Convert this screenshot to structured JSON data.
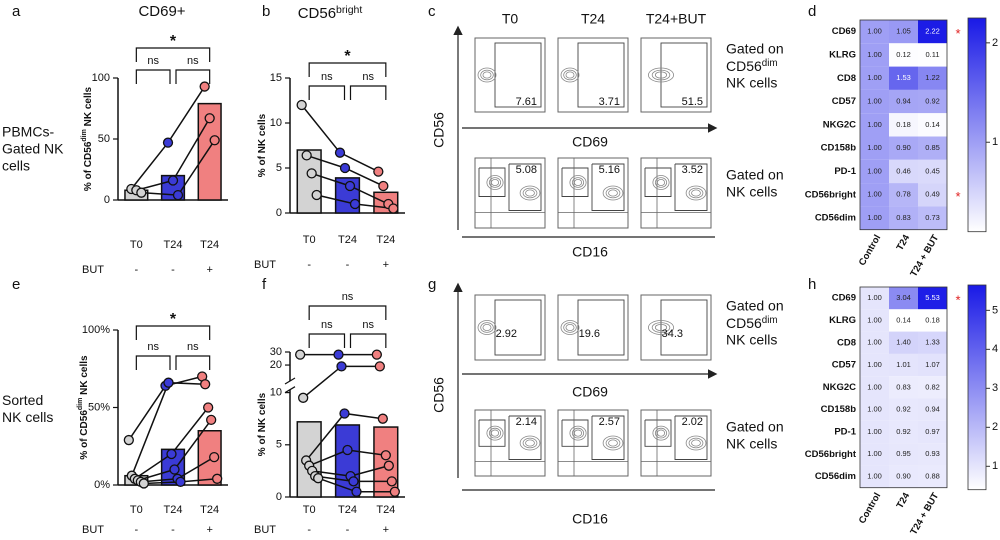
{
  "panel_labels": [
    "a",
    "b",
    "c",
    "d",
    "e",
    "f",
    "g",
    "h"
  ],
  "row_labels": [
    [
      "PBMCs-",
      "Gated NK",
      "cells"
    ],
    [
      "Sorted",
      "NK cells"
    ]
  ],
  "chart_data": [
    {
      "type": "bar",
      "title": [
        "CD69+"
      ],
      "ylabel": [
        "% of CD56",
        "dim",
        " NK cells"
      ],
      "categories": [
        "T0",
        "T24",
        "T24"
      ],
      "treatment": {
        "label": "BUT",
        "values": [
          "-",
          "-",
          "+"
        ]
      },
      "values": [
        8,
        20,
        79
      ],
      "colors": [
        "#d3d3d3",
        "#3b3bd6",
        "#f08080"
      ],
      "donors": [
        {
          "values": [
            9,
            47,
            93
          ]
        },
        {
          "values": [
            8,
            16,
            67
          ]
        },
        {
          "values": [
            6,
            4,
            49
          ]
        }
      ],
      "ylim": [
        0,
        100
      ],
      "yticks": [
        0,
        50,
        100
      ],
      "significance": [
        {
          "label": "*",
          "from": 0,
          "to": 2
        },
        {
          "label": "ns",
          "from": 0,
          "to": 1
        },
        {
          "label": "ns",
          "from": 1,
          "to": 2
        }
      ]
    },
    {
      "type": "bar",
      "title": [
        "CD56",
        "bright"
      ],
      "ylabel": [
        "% of NK cells"
      ],
      "categories": [
        "T0",
        "T24",
        "T24"
      ],
      "treatment": {
        "label": "BUT",
        "values": [
          "-",
          "-",
          "+"
        ]
      },
      "values": [
        7,
        3.9,
        2.3
      ],
      "colors": [
        "#d3d3d3",
        "#3b3bd6",
        "#f08080"
      ],
      "donors": [
        {
          "values": [
            12,
            6.7,
            4.6
          ]
        },
        {
          "values": [
            6.4,
            5,
            3
          ]
        },
        {
          "values": [
            4.4,
            3,
            1
          ]
        },
        {
          "values": [
            2,
            1,
            0.5
          ]
        }
      ],
      "ylim": [
        0,
        15
      ],
      "yticks": [
        0,
        5,
        10,
        15
      ],
      "significance": [
        {
          "label": "*",
          "from": 0,
          "to": 2
        },
        {
          "label": "ns",
          "from": 0,
          "to": 1
        },
        {
          "label": "ns",
          "from": 1,
          "to": 2
        }
      ]
    },
    {
      "type": "heatmap",
      "rows": [
        "CD69",
        "KLRG",
        "CD8",
        "CD57",
        "NKG2C",
        "CD158b",
        "PD-1",
        "CD56bright",
        "CD56dim"
      ],
      "columns": [
        "Control",
        "T24",
        "T24 + BUT"
      ],
      "values": [
        [
          1,
          1.05,
          2.22
        ],
        [
          1,
          0.12,
          0.11
        ],
        [
          1,
          1.53,
          1.22
        ],
        [
          1,
          0.94,
          0.92
        ],
        [
          1,
          0.18,
          0.14
        ],
        [
          1,
          0.9,
          0.85
        ],
        [
          1,
          0.46,
          0.45
        ],
        [
          1,
          0.78,
          0.49
        ],
        [
          1,
          0.83,
          0.73
        ]
      ],
      "value_labels": [
        [
          "1.00",
          "1.05",
          "2.22"
        ],
        [
          "1.00",
          "0.12",
          "0.11"
        ],
        [
          "1.00",
          "1.53",
          "1.22"
        ],
        [
          "1.00",
          "0.94",
          "0.92"
        ],
        [
          "1.00",
          "0.18",
          "0.14"
        ],
        [
          "1.00",
          "0.90",
          "0.85"
        ],
        [
          "1.00",
          "0.46",
          "0.45"
        ],
        [
          "1.00",
          "0.78",
          "0.49"
        ],
        [
          "1.00",
          "0.83",
          "0.73"
        ]
      ],
      "row_marks": [
        "*",
        null,
        null,
        null,
        null,
        null,
        null,
        "*",
        null
      ],
      "clim": [
        0.1,
        2.25
      ],
      "cticks": [
        1,
        2
      ],
      "color": "#1919e6"
    },
    {
      "type": "bar",
      "ylabel": [
        "% of CD56",
        "dim",
        " NK cells"
      ],
      "categories": [
        "T0",
        "T24",
        "T24"
      ],
      "treatment": {
        "label": "BUT",
        "values": [
          "-",
          "-",
          "+"
        ]
      },
      "values": [
        6,
        23,
        35
      ],
      "colors": [
        "#d3d3d3",
        "#3b3bd6",
        "#f08080"
      ],
      "donors": [
        {
          "values": [
            29,
            64,
            70
          ]
        },
        {
          "values": [
            6,
            66,
            65
          ]
        },
        {
          "values": [
            4,
            20,
            50
          ]
        },
        {
          "values": [
            3,
            10,
            42
          ]
        },
        {
          "values": [
            2,
            4,
            18
          ]
        },
        {
          "values": [
            1,
            2,
            4
          ]
        }
      ],
      "ylim": [
        0,
        100
      ],
      "yticks": [
        {
          "value": 0,
          "label": "0%"
        },
        {
          "value": 50,
          "label": "50%"
        },
        {
          "value": 100,
          "label": "100%"
        }
      ],
      "significance": [
        {
          "label": "*",
          "from": 0,
          "to": 2
        },
        {
          "label": "ns",
          "from": 0,
          "to": 1
        },
        {
          "label": "ns",
          "from": 1,
          "to": 2
        }
      ]
    },
    {
      "type": "bar",
      "ylabel": [
        "% of NK cells"
      ],
      "categories": [
        "T0",
        "T24",
        "T24"
      ],
      "treatment": {
        "label": "BUT",
        "values": [
          "-",
          "-",
          "+"
        ]
      },
      "values": [
        7.2,
        6.9,
        6.7
      ],
      "colors": [
        "#d3d3d3",
        "#3b3bd6",
        "#f08080"
      ],
      "donors": [
        {
          "values": [
            28,
            28,
            28
          ]
        },
        {
          "values": [
            9.5,
            19,
            19
          ]
        },
        {
          "values": [
            3.5,
            8,
            7.5
          ]
        },
        {
          "values": [
            3,
            4.5,
            4
          ]
        },
        {
          "values": [
            2.5,
            2,
            3
          ]
        },
        {
          "values": [
            2,
            1.5,
            1.5
          ]
        },
        {
          "values": [
            1.8,
            0.5,
            0.5
          ]
        }
      ],
      "ylim": [
        0,
        30
      ],
      "yticks": [
        0,
        5,
        10,
        20,
        30
      ],
      "axis_break": [
        10,
        30
      ],
      "significance": [
        {
          "label": "ns",
          "from": 0,
          "to": 2
        },
        {
          "label": "ns",
          "from": 0,
          "to": 1
        },
        {
          "label": "ns",
          "from": 1,
          "to": 2
        }
      ]
    },
    {
      "type": "heatmap",
      "rows": [
        "CD69",
        "KLRG",
        "CD8",
        "CD57",
        "NKG2C",
        "CD158b",
        "PD-1",
        "CD56bright",
        "CD56dim"
      ],
      "columns": [
        "Control",
        "T24",
        "T24 + BUT"
      ],
      "values": [
        [
          1,
          3.04,
          5.53
        ],
        [
          1,
          0.14,
          0.18
        ],
        [
          1,
          1.4,
          1.33
        ],
        [
          1,
          1.01,
          1.07
        ],
        [
          1,
          0.83,
          0.82
        ],
        [
          1,
          0.92,
          0.94
        ],
        [
          1,
          0.92,
          0.97
        ],
        [
          1,
          0.95,
          0.93
        ],
        [
          1,
          0.9,
          0.88
        ]
      ],
      "value_labels": [
        [
          "1.00",
          "3.04",
          "5.53"
        ],
        [
          "1.00",
          "0.14",
          "0.18"
        ],
        [
          "1.00",
          "1.40",
          "1.33"
        ],
        [
          "1.00",
          "1.01",
          "1.07"
        ],
        [
          "1.00",
          "0.83",
          "0.82"
        ],
        [
          "1.00",
          "0.92",
          "0.94"
        ],
        [
          "1.00",
          "0.92",
          "0.97"
        ],
        [
          "1.00",
          "0.95",
          "0.93"
        ],
        [
          "1.00",
          "0.90",
          "0.88"
        ]
      ],
      "row_marks": [
        "*",
        null,
        null,
        null,
        null,
        null,
        null,
        null,
        null
      ],
      "clim": [
        0.4,
        5.65
      ],
      "cticks": [
        1,
        2,
        3,
        4,
        5
      ],
      "color": "#1919e6"
    }
  ],
  "flow_panels": [
    {
      "columns": [
        "T0",
        "T24",
        "T24+BUT"
      ],
      "ylabel": "CD56",
      "rows": [
        {
          "xlabel": "CD69",
          "gate_label": [
            "Gated on",
            [
              "CD56",
              "dim"
            ],
            "NK cells"
          ],
          "values": [
            7.61,
            3.71,
            51.5
          ]
        },
        {
          "xlabel": "CD16",
          "gate_label": [
            "Gated on",
            "NK cells"
          ],
          "values": [
            5.08,
            5.16,
            3.52
          ]
        }
      ]
    },
    {
      "ylabel": "CD56",
      "rows": [
        {
          "xlabel": "CD69",
          "gate_label": [
            "Gated on",
            [
              "CD56",
              "dim"
            ],
            "NK cells"
          ],
          "values": [
            2.92,
            19.6,
            34.3
          ]
        },
        {
          "xlabel": "CD16",
          "gate_label": [
            "Gated on",
            "NK cells"
          ],
          "values": [
            2.14,
            2.57,
            2.02
          ]
        }
      ]
    }
  ]
}
